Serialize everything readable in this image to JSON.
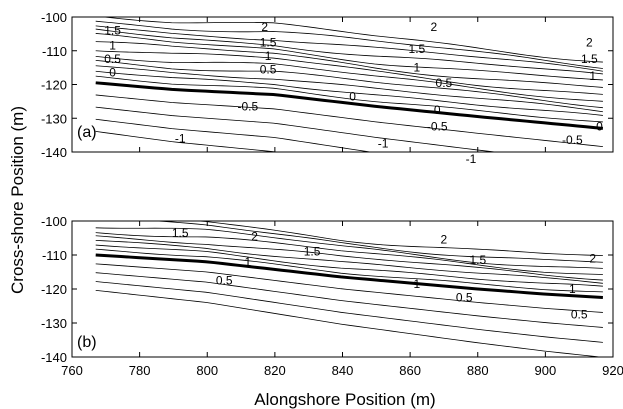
{
  "chart_data": {
    "type": "contour",
    "xlabel": "Alongshore Position (m)",
    "ylabel": "Cross-shore Position (m)",
    "xlim": [
      760,
      920
    ],
    "ylim": [
      -140,
      -100
    ],
    "xticks": [
      "760",
      "780",
      "800",
      "820",
      "840",
      "860",
      "880",
      "900",
      "920"
    ],
    "yticks": [
      "-100",
      "-110",
      "-120",
      "-130",
      "-140"
    ],
    "contour_interval": 0.25,
    "highlighted_level": 0,
    "panels": [
      {
        "label": "(a)",
        "x_extent": [
          767,
          917
        ],
        "zero_contour": [
          [
            767,
            -119.5
          ],
          [
            790,
            -121.5
          ],
          [
            820,
            -123
          ],
          [
            850,
            -126.5
          ],
          [
            880,
            -129.5
          ],
          [
            917,
            -133
          ]
        ],
        "levels_above_zero": 12,
        "levels_below_zero": 4,
        "contour_labels": [
          {
            "text": "1.5",
            "x": 772,
            "y": -104
          },
          {
            "text": "1",
            "x": 772,
            "y": -108.5
          },
          {
            "text": "0.5",
            "x": 772,
            "y": -112.5
          },
          {
            "text": "0",
            "x": 772,
            "y": -116.5
          },
          {
            "text": "-0.5",
            "x": 812,
            "y": -126.5
          },
          {
            "text": "-1",
            "x": 792,
            "y": -136
          },
          {
            "text": "2",
            "x": 817,
            "y": -103
          },
          {
            "text": "1.5",
            "x": 818,
            "y": -107.5
          },
          {
            "text": "1",
            "x": 818,
            "y": -111.5
          },
          {
            "text": "0.5",
            "x": 818,
            "y": -115.5
          },
          {
            "text": "0",
            "x": 843,
            "y": -123.5
          },
          {
            "text": "-1",
            "x": 852,
            "y": -137.5
          },
          {
            "text": "1.5",
            "x": 862,
            "y": -109.5
          },
          {
            "text": "1",
            "x": 862,
            "y": -115
          },
          {
            "text": "0.5",
            "x": 870,
            "y": -119.5
          },
          {
            "text": "0",
            "x": 868,
            "y": -127.5
          },
          {
            "text": "-0.5",
            "x": 868,
            "y": -132.5
          },
          {
            "text": "2",
            "x": 867,
            "y": -103
          },
          {
            "text": "-1",
            "x": 878,
            "y": -142
          },
          {
            "text": "-0.5",
            "x": 908,
            "y": -136.5
          },
          {
            "text": "0",
            "x": 916,
            "y": -132.5
          },
          {
            "text": "2",
            "x": 913,
            "y": -107.5
          },
          {
            "text": "1.5",
            "x": 913,
            "y": -112.5
          },
          {
            "text": "1",
            "x": 914,
            "y": -117.5
          }
        ]
      },
      {
        "label": "(b)",
        "x_extent": [
          767,
          917
        ],
        "zero_contour": [
          [
            767,
            -110
          ],
          [
            800,
            -112
          ],
          [
            840,
            -116.5
          ],
          [
            880,
            -120
          ],
          [
            900,
            -121.5
          ],
          [
            917,
            -122.5
          ]
        ],
        "levels_above_zero": 8,
        "levels_below_zero": 4,
        "contour_labels": [
          {
            "text": "1.5",
            "x": 792,
            "y": -103.5
          },
          {
            "text": "2",
            "x": 814,
            "y": -104.5
          },
          {
            "text": "1.5",
            "x": 831,
            "y": -109
          },
          {
            "text": "1",
            "x": 812,
            "y": -112
          },
          {
            "text": "0.5",
            "x": 805,
            "y": -117.5
          },
          {
            "text": "2",
            "x": 870,
            "y": -105.5
          },
          {
            "text": "1.5",
            "x": 880,
            "y": -111.5
          },
          {
            "text": "1",
            "x": 862,
            "y": -118.5
          },
          {
            "text": "0.5",
            "x": 876,
            "y": -122.5
          },
          {
            "text": "1",
            "x": 908,
            "y": -120
          },
          {
            "text": "0.5",
            "x": 910,
            "y": -127.5
          },
          {
            "text": "2",
            "x": 914,
            "y": -111
          }
        ]
      }
    ]
  }
}
